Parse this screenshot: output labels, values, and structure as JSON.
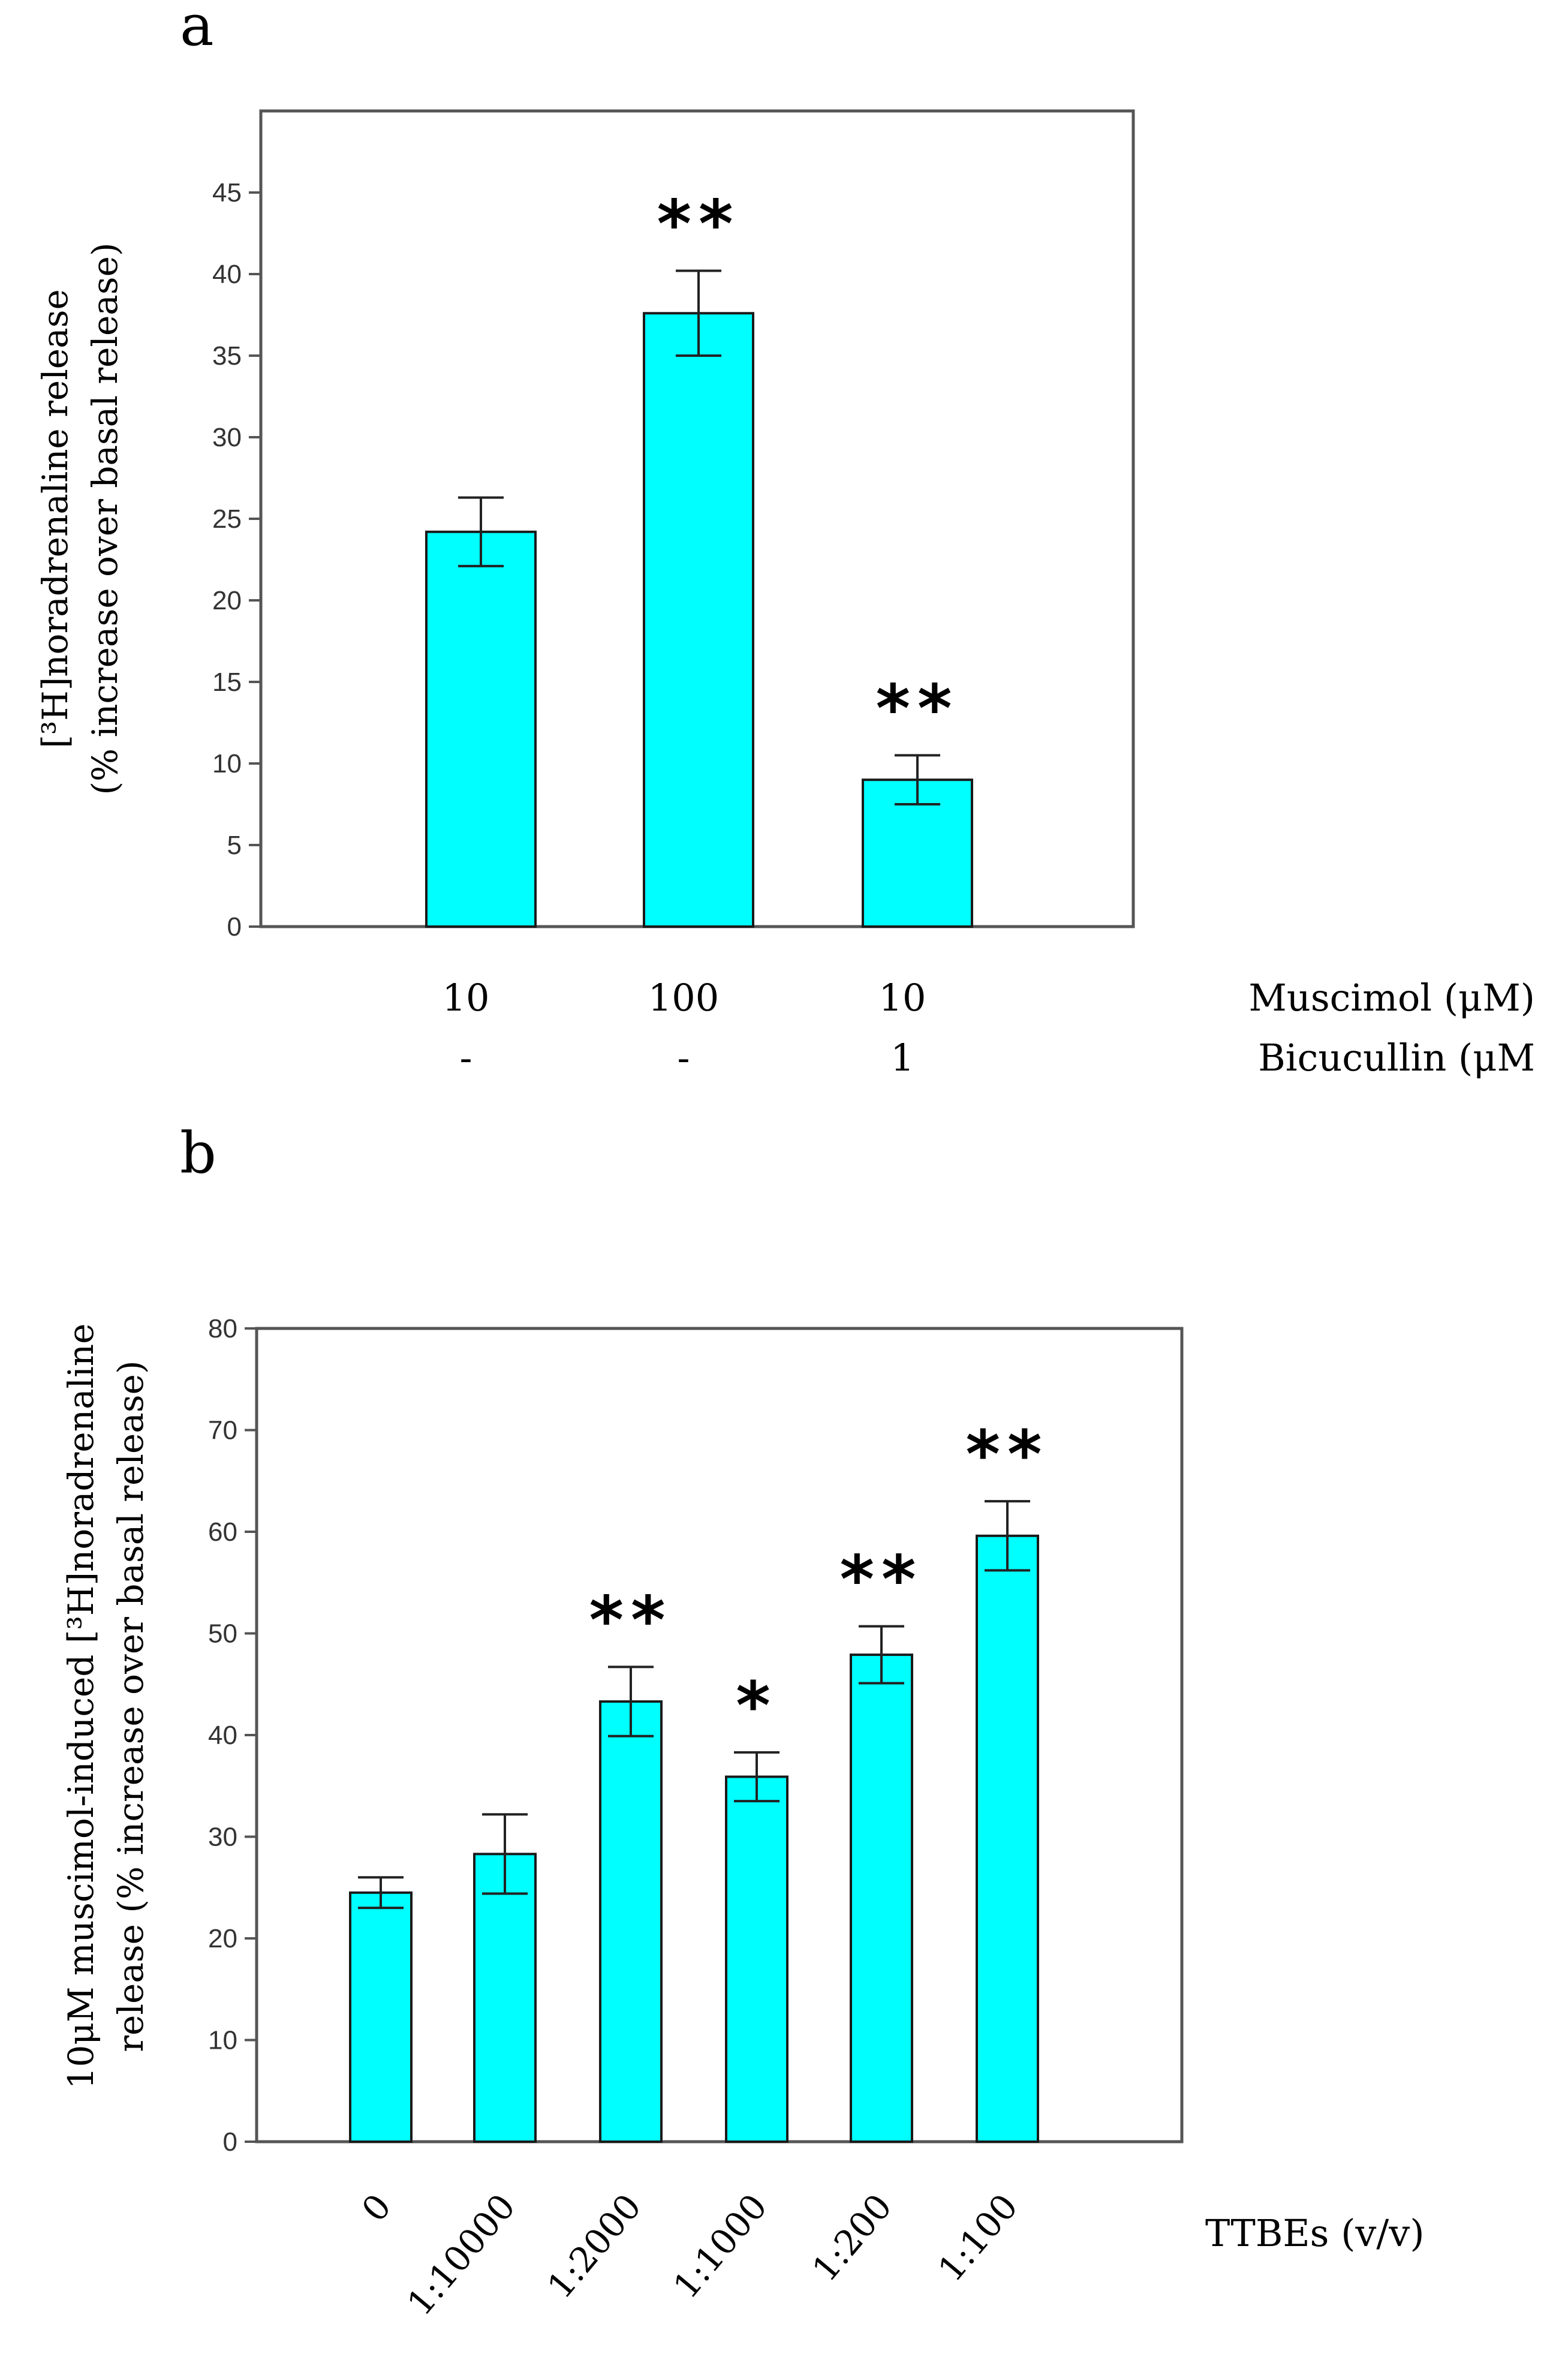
{
  "colors": {
    "bar_fill": "#00FFFF",
    "bar_stroke": "#1a1a1a",
    "axis": "#555555",
    "text": "#000000"
  },
  "chart_data": [
    {
      "panel_label": "a",
      "type": "bar",
      "ylabel_line1": "[³H]noradrenaline release",
      "ylabel_line2": "(% increase over basal release)",
      "ylim": [
        0,
        50
      ],
      "yticks": [
        0,
        5,
        10,
        15,
        20,
        25,
        30,
        35,
        40,
        45
      ],
      "categories": [
        "10 / -",
        "100 / -",
        "10 / 1"
      ],
      "values": [
        24.2,
        37.6,
        9.0
      ],
      "errors": [
        2.1,
        2.6,
        1.5
      ],
      "significance": [
        "",
        "**",
        "**"
      ],
      "condition_rows": [
        {
          "label": "Muscimol (μM)",
          "values": [
            "10",
            "100",
            "10"
          ]
        },
        {
          "label": "Bicucullin (μM",
          "values": [
            "-",
            "-",
            "1"
          ]
        }
      ],
      "grid": false
    },
    {
      "panel_label": "b",
      "type": "bar",
      "ylabel_line1": "10μM muscimol-induced [³H]noradrenaline",
      "ylabel_line2": "release (% increase over basal release)",
      "ylim": [
        0,
        80
      ],
      "yticks": [
        0,
        10,
        20,
        30,
        40,
        50,
        60,
        70,
        80
      ],
      "categories": [
        "0",
        "1:10000",
        "1:2000",
        "1:1000",
        "1:200",
        "1:100"
      ],
      "values": [
        24.5,
        28.3,
        43.3,
        35.9,
        47.9,
        59.6
      ],
      "errors": [
        1.5,
        3.9,
        3.4,
        2.4,
        2.8,
        3.4
      ],
      "significance": [
        "",
        "",
        "**",
        "*",
        "**",
        "**"
      ],
      "xlabel": "TTBEs (v/v)",
      "grid": false
    }
  ]
}
